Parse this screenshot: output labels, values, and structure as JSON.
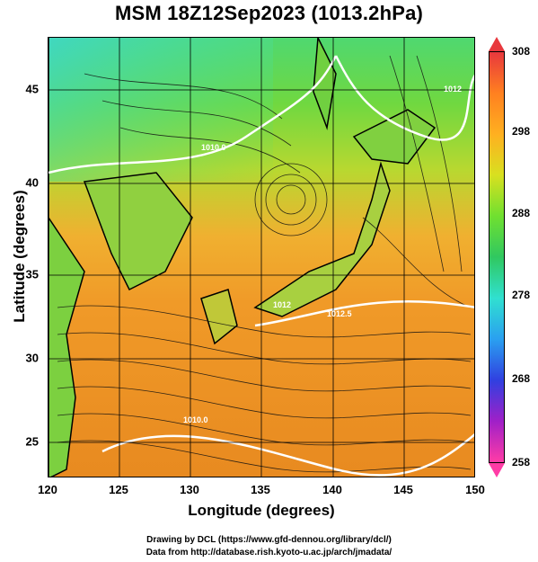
{
  "title": "MSM 18Z12Sep2023 (1013.2hPa)",
  "x_axis": {
    "label": "Longitude (degrees)",
    "ticks": [
      "120",
      "125",
      "130",
      "135",
      "140",
      "145",
      "150"
    ]
  },
  "y_axis": {
    "label": "Latitude  (degrees)",
    "ticks": [
      "45",
      "40",
      "35",
      "30",
      "25"
    ]
  },
  "colorbar": {
    "labels": [
      "308",
      "298",
      "288",
      "278",
      "268",
      "258"
    ],
    "colors": [
      "#ff3ca6",
      "#a020c8",
      "#3040e0",
      "#2aa0f0",
      "#30e0d0",
      "#30c860",
      "#70e030",
      "#d8e020",
      "#ffb020",
      "#ff8020",
      "#e8383d"
    ]
  },
  "contour_labels": [
    "1010.0",
    "1012",
    "1012.5",
    "1012",
    "1010.0"
  ],
  "credits": {
    "line1": "Drawing by DCL (https://www.gfd-dennou.org/library/dcl/)",
    "line2": "Data from http://database.rish.kyoto-u.ac.jp/arch/jmadata/"
  }
}
